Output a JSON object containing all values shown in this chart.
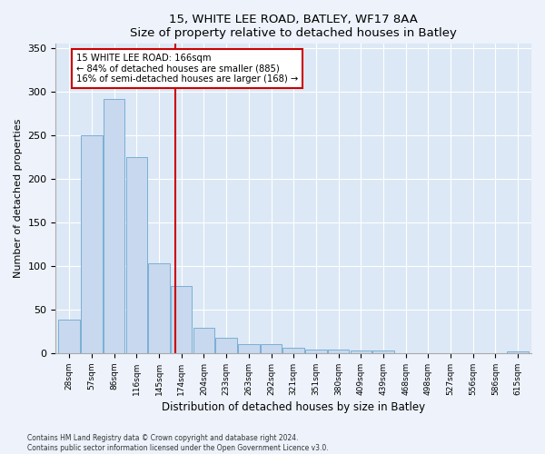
{
  "title": "15, WHITE LEE ROAD, BATLEY, WF17 8AA",
  "subtitle": "Size of property relative to detached houses in Batley",
  "xlabel": "Distribution of detached houses by size in Batley",
  "ylabel": "Number of detached properties",
  "bar_labels": [
    "28sqm",
    "57sqm",
    "86sqm",
    "116sqm",
    "145sqm",
    "174sqm",
    "204sqm",
    "233sqm",
    "263sqm",
    "292sqm",
    "321sqm",
    "351sqm",
    "380sqm",
    "409sqm",
    "439sqm",
    "468sqm",
    "498sqm",
    "527sqm",
    "556sqm",
    "586sqm",
    "615sqm"
  ],
  "bar_values": [
    38,
    250,
    292,
    225,
    103,
    77,
    29,
    18,
    10,
    10,
    6,
    4,
    4,
    3,
    3,
    0,
    0,
    0,
    0,
    0,
    2
  ],
  "bar_color": "#c8d8ee",
  "bar_edge_color": "#7aafd4",
  "background_color": "#dce8f5",
  "fig_background_color": "#edf2fb",
  "property_line_color": "#cc0000",
  "property_line_xindex": 4.72,
  "annotation_title": "15 WHITE LEE ROAD: 166sqm",
  "annotation_line1": "← 84% of detached houses are smaller (885)",
  "annotation_line2": "16% of semi-detached houses are larger (168) →",
  "annotation_box_color": "#cc0000",
  "ylim": [
    0,
    355
  ],
  "yticks": [
    0,
    50,
    100,
    150,
    200,
    250,
    300,
    350
  ],
  "footer1": "Contains HM Land Registry data © Crown copyright and database right 2024.",
  "footer2": "Contains public sector information licensed under the Open Government Licence v3.0."
}
